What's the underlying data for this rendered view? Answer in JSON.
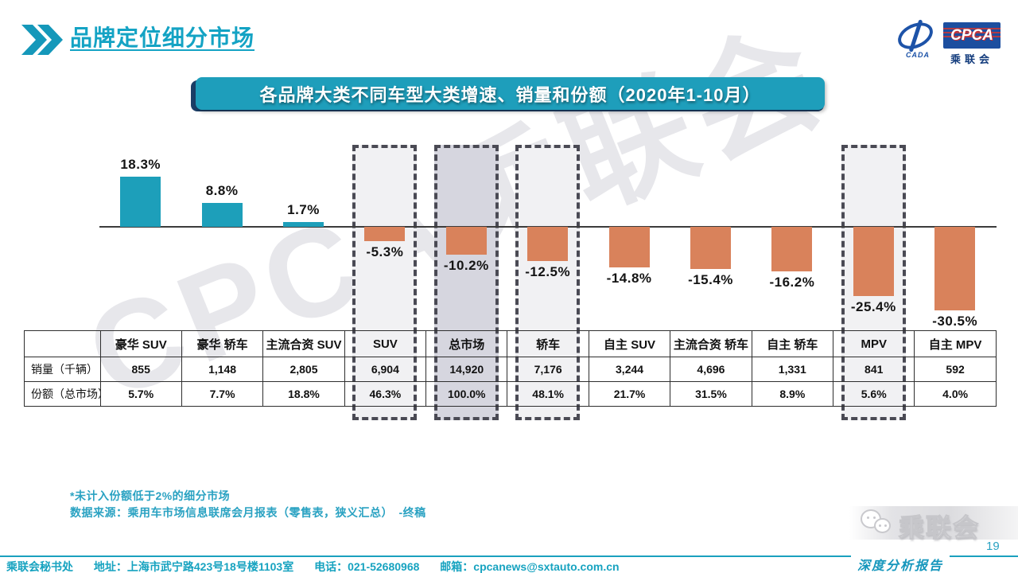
{
  "header": {
    "title": "品牌定位细分市场"
  },
  "logo": {
    "cpca": "CPCA",
    "cada": "CADA",
    "cn": "乘联会"
  },
  "banner": {
    "title": "各品牌大类不同车型大类增速、销量和份额（2020年1-10月）"
  },
  "chart_data": {
    "type": "bar",
    "title": "各品牌大类不同车型大类增速、销量和份额（2020年1-10月）",
    "categories": [
      "豪华 SUV",
      "豪华 轿车",
      "主流合资 SUV",
      "SUV",
      "总市场",
      "轿车",
      "自主 SUV",
      "主流合资 轿车",
      "自主 轿车",
      "MPV",
      "自主 MPV"
    ],
    "values": [
      18.3,
      8.8,
      1.7,
      -5.3,
      -10.2,
      -12.5,
      -14.8,
      -15.4,
      -16.2,
      -25.4,
      -30.5
    ],
    "labels": [
      "18.3%",
      "8.8%",
      "1.7%",
      "-5.3%",
      "-10.2%",
      "-12.5%",
      "-14.8%",
      "-15.4%",
      "-16.2%",
      "-25.4%",
      "-30.5%"
    ],
    "unit": "%",
    "baseline": 0,
    "positive_color": "#1d9fba",
    "negative_color": "#d9825b",
    "grid": false,
    "legend": false,
    "highlight_boxes": [
      {
        "category": "SUV",
        "fill": "#f1f1f3"
      },
      {
        "category": "总市场",
        "fill": "#d6d6df"
      },
      {
        "category": "轿车",
        "fill": "#f1f1f3"
      },
      {
        "category": "MPV",
        "fill": "#f1f1f3"
      }
    ]
  },
  "table": {
    "columns": [
      "豪华 SUV",
      "豪华 轿车",
      "主流合资 SUV",
      "SUV",
      "总市场",
      "轿车",
      "自主 SUV",
      "主流合资 轿车",
      "自主 轿车",
      "MPV",
      "自主 MPV"
    ],
    "rows": [
      {
        "label": "销量（千辆）",
        "cells": [
          "855",
          "1,148",
          "2,805",
          "6,904",
          "14,920",
          "7,176",
          "3,244",
          "4,696",
          "1,331",
          "841",
          "592"
        ]
      },
      {
        "label": "份额（总市场）",
        "cells": [
          "5.7%",
          "7.7%",
          "18.8%",
          "46.3%",
          "100.0%",
          "48.1%",
          "21.7%",
          "31.5%",
          "8.9%",
          "5.6%",
          "4.0%"
        ]
      }
    ]
  },
  "footnotes": {
    "line1": "*未计入份额低于2%的细分市场",
    "line2": "数据来源：乘用车市场信息联席会月报表（零售表，狭义汇总）　-终稿"
  },
  "watermark": "CPCA乘联会",
  "footer": {
    "items": [
      "乘联会秘书处",
      "地址：上海市武宁路423号18号楼1103室",
      "电话：021-52680968",
      "邮箱：cpcanews@sxtauto.com.cn"
    ],
    "report_tag": "深度分析报告",
    "page": "19",
    "wechat_text": "乘联会"
  },
  "colors": {
    "accent_teal": "#1aa0c0",
    "banner_teal": "#1e9ebb",
    "logo_navy": "#1c4e9f",
    "dashed_border": "#4a4a54",
    "axis": "#3c3c3c"
  }
}
